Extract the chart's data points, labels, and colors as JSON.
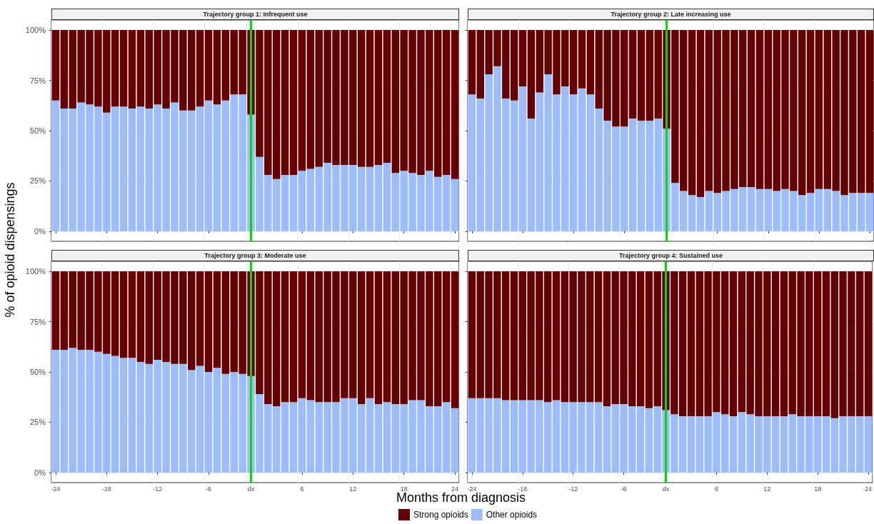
{
  "chart_data": [
    {
      "type": "bar",
      "title": "Trajectory group 1: Infrequent use",
      "xlabel": "Months from diagnosis",
      "ylabel": "% of opioid dispensings",
      "stacked": true,
      "grid": true,
      "legend": false,
      "tick_labels": "y",
      "categories": [
        "-24",
        null,
        null,
        null,
        null,
        null,
        "-18",
        null,
        null,
        null,
        null,
        null,
        "-12",
        null,
        null,
        null,
        null,
        null,
        "-6",
        null,
        null,
        null,
        null,
        "dx",
        null,
        null,
        null,
        null,
        null,
        "6",
        null,
        null,
        null,
        null,
        null,
        "12",
        null,
        null,
        null,
        null,
        null,
        "18",
        null,
        null,
        null,
        null,
        null,
        "24"
      ],
      "ylim": [
        -5,
        105
      ],
      "yticks": [
        {
          "value": 0,
          "label": "0%"
        },
        {
          "value": 25,
          "label": "25%"
        },
        {
          "value": 50,
          "label": "50%"
        },
        {
          "value": 75,
          "label": "75%"
        },
        {
          "value": 100,
          "label": "100%"
        }
      ],
      "ref_lines": [
        {
          "axis": "x",
          "value": "dx",
          "color": "#00dd00"
        }
      ],
      "series": [
        {
          "color": "#9dbcfb",
          "values": [
            65,
            61,
            61,
            64,
            63,
            62,
            59,
            62,
            62,
            61,
            62,
            61,
            63,
            61,
            64,
            60,
            60,
            62,
            65,
            63,
            65,
            68,
            68,
            58,
            37,
            28,
            26,
            28,
            28,
            30,
            31,
            32,
            34,
            33,
            33,
            33,
            32,
            32,
            33,
            34,
            29,
            30,
            29,
            28,
            30,
            27,
            28,
            26
          ]
        },
        {
          "color": "#660000",
          "values": [
            35,
            39,
            39,
            36,
            37,
            38,
            41,
            38,
            38,
            39,
            38,
            39,
            37,
            39,
            36,
            40,
            40,
            38,
            35,
            37,
            35,
            32,
            32,
            42,
            63,
            72,
            74,
            72,
            72,
            70,
            69,
            68,
            66,
            67,
            67,
            67,
            68,
            68,
            67,
            66,
            71,
            70,
            71,
            72,
            70,
            73,
            72,
            74
          ]
        }
      ]
    },
    {
      "type": "bar",
      "title": "Trajectory group 2: Late increasing use",
      "stacked": true,
      "grid": true,
      "legend": false,
      "tick_labels": false,
      "categories": [
        "-24",
        null,
        null,
        null,
        null,
        null,
        "-18",
        null,
        null,
        null,
        null,
        null,
        "-12",
        null,
        null,
        null,
        null,
        null,
        "-6",
        null,
        null,
        null,
        null,
        "dx",
        null,
        null,
        null,
        null,
        null,
        "6",
        null,
        null,
        null,
        null,
        null,
        "12",
        null,
        null,
        null,
        null,
        null,
        "18",
        null,
        null,
        null,
        null,
        null,
        "24"
      ],
      "ylim": [
        -5,
        105
      ],
      "yticks": [
        {
          "value": 0,
          "label": null
        },
        {
          "value": 25,
          "label": null
        },
        {
          "value": 50,
          "label": null
        },
        {
          "value": 75,
          "label": null
        },
        {
          "value": 100,
          "label": null
        }
      ],
      "ref_lines": [
        {
          "axis": "x",
          "value": "dx",
          "color": "#00dd00"
        }
      ],
      "series": [
        {
          "color": "#9dbcfb",
          "values": [
            68,
            66,
            78,
            82,
            66,
            65,
            72,
            56,
            69,
            78,
            68,
            72,
            68,
            71,
            68,
            61,
            55,
            52,
            52,
            56,
            55,
            55,
            56,
            51,
            24,
            20,
            18,
            17,
            20,
            19,
            20,
            21,
            22,
            22,
            21,
            21,
            20,
            21,
            20,
            18,
            19,
            21,
            21,
            20,
            18,
            19,
            19,
            19
          ]
        },
        {
          "color": "#660000",
          "values": [
            32,
            34,
            22,
            18,
            34,
            35,
            28,
            44,
            31,
            22,
            32,
            28,
            32,
            29,
            32,
            39,
            45,
            48,
            48,
            44,
            45,
            45,
            44,
            49,
            76,
            80,
            82,
            83,
            80,
            81,
            80,
            79,
            78,
            78,
            79,
            79,
            80,
            79,
            80,
            82,
            81,
            79,
            79,
            80,
            82,
            81,
            81,
            81
          ]
        }
      ]
    },
    {
      "type": "bar",
      "title": "Trajectory group 3: Moderate use",
      "stacked": true,
      "grid": true,
      "legend": "bottom",
      "categories": [
        "-24",
        null,
        null,
        null,
        null,
        null,
        "-18",
        null,
        null,
        null,
        null,
        null,
        "-12",
        null,
        null,
        null,
        null,
        null,
        "-6",
        null,
        null,
        null,
        null,
        "dx",
        null,
        null,
        null,
        null,
        null,
        "6",
        null,
        null,
        null,
        null,
        null,
        "12",
        null,
        null,
        null,
        null,
        null,
        "18",
        null,
        null,
        null,
        null,
        null,
        "24"
      ],
      "ylim": [
        -5,
        105
      ],
      "yticks": [
        {
          "value": 0,
          "label": "0%"
        },
        {
          "value": 25,
          "label": "25%"
        },
        {
          "value": 50,
          "label": "50%"
        },
        {
          "value": 75,
          "label": "75%"
        },
        {
          "value": 100,
          "label": "100%"
        }
      ],
      "ref_lines": [
        {
          "axis": "x",
          "value": "dx",
          "color": "#00dd00"
        }
      ],
      "series": [
        {
          "name": "Other opioids",
          "color": "#9dbcfb",
          "values": [
            61,
            61,
            62,
            61,
            61,
            60,
            59,
            58,
            57,
            57,
            55,
            54,
            56,
            55,
            54,
            54,
            51,
            53,
            50,
            52,
            49,
            50,
            49,
            48,
            39,
            34,
            33,
            35,
            35,
            37,
            36,
            35,
            35,
            35,
            37,
            37,
            34,
            37,
            34,
            35,
            34,
            34,
            36,
            36,
            33,
            33,
            35,
            32
          ]
        },
        {
          "name": "Strong opioids",
          "color": "#660000",
          "values": [
            39,
            39,
            38,
            39,
            39,
            40,
            41,
            42,
            43,
            43,
            45,
            46,
            44,
            45,
            46,
            46,
            49,
            47,
            50,
            48,
            51,
            50,
            51,
            52,
            61,
            66,
            67,
            65,
            65,
            63,
            64,
            65,
            65,
            65,
            63,
            63,
            66,
            63,
            66,
            65,
            66,
            66,
            64,
            64,
            67,
            67,
            65,
            68
          ]
        }
      ]
    },
    {
      "type": "bar",
      "title": "Trajectory group 4: Sustained use",
      "stacked": true,
      "grid": true,
      "legend": false,
      "tick_labels": "x",
      "categories": [
        "-24",
        null,
        null,
        null,
        null,
        null,
        "-18",
        null,
        null,
        null,
        null,
        null,
        "-12",
        null,
        null,
        null,
        null,
        null,
        "-6",
        null,
        null,
        null,
        null,
        "dx",
        null,
        null,
        null,
        null,
        null,
        "6",
        null,
        null,
        null,
        null,
        null,
        "12",
        null,
        null,
        null,
        null,
        null,
        "18",
        null,
        null,
        null,
        null,
        null,
        "24"
      ],
      "ylim": [
        -5,
        105
      ],
      "yticks": [
        {
          "value": 0,
          "label": null
        },
        {
          "value": 25,
          "label": null
        },
        {
          "value": 50,
          "label": null
        },
        {
          "value": 75,
          "label": null
        },
        {
          "value": 100,
          "label": null
        }
      ],
      "ref_lines": [
        {
          "axis": "x",
          "value": "dx",
          "color": "#00dd00"
        }
      ],
      "series": [
        {
          "color": "#9dbcfb",
          "values": [
            37,
            37,
            37,
            37,
            36,
            36,
            36,
            36,
            36,
            35,
            36,
            35,
            35,
            35,
            35,
            35,
            33,
            34,
            34,
            33,
            33,
            32,
            33,
            31,
            29,
            28,
            28,
            28,
            28,
            30,
            29,
            28,
            30,
            29,
            28,
            28,
            28,
            28,
            29,
            28,
            28,
            28,
            28,
            27,
            28,
            28,
            28,
            28
          ]
        },
        {
          "color": "#660000",
          "values": [
            63,
            63,
            63,
            63,
            64,
            64,
            64,
            64,
            64,
            65,
            64,
            65,
            65,
            65,
            65,
            65,
            67,
            66,
            66,
            67,
            67,
            68,
            67,
            69,
            71,
            72,
            72,
            72,
            72,
            70,
            71,
            72,
            70,
            71,
            72,
            72,
            72,
            72,
            71,
            72,
            72,
            72,
            72,
            73,
            72,
            72,
            72,
            72
          ]
        }
      ]
    }
  ]
}
